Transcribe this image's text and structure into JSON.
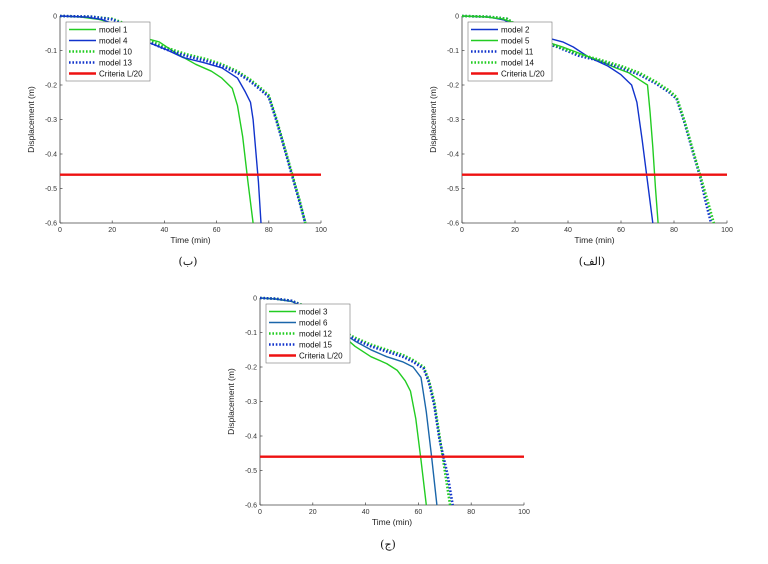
{
  "chart_data": [
    {
      "type": "line",
      "caption": "(ب)",
      "xlabel": "Time (min)",
      "ylabel": "Displacement (m)",
      "xlim": [
        0,
        100
      ],
      "ylim": [
        -0.6,
        0
      ],
      "xticks": [
        0,
        20,
        40,
        60,
        80,
        100
      ],
      "yticks": [
        0,
        -0.1,
        -0.2,
        -0.3,
        -0.4,
        -0.5,
        -0.6
      ],
      "ytick_labels": [
        "0",
        "-0.1",
        "-0.2",
        "-0.3",
        "-0.4",
        "-0.5",
        "-0.6"
      ],
      "legend_position": "top-left",
      "series": [
        {
          "name": "model 1",
          "color": "#22cc22",
          "style": "solid",
          "x": [
            0,
            8,
            15,
            22,
            27,
            33,
            38,
            45,
            52,
            58,
            62,
            66,
            68,
            70,
            72,
            74
          ],
          "y": [
            0,
            -0.003,
            -0.01,
            -0.025,
            -0.04,
            -0.065,
            -0.075,
            -0.11,
            -0.14,
            -0.16,
            -0.18,
            -0.21,
            -0.26,
            -0.35,
            -0.48,
            -0.6
          ]
        },
        {
          "name": "model 4",
          "color": "#1133cc",
          "style": "solid",
          "x": [
            0,
            10,
            16,
            21,
            26,
            30,
            35,
            40,
            47,
            55,
            62,
            68,
            71,
            73,
            74,
            76,
            77
          ],
          "y": [
            0,
            -0.003,
            -0.01,
            -0.025,
            -0.045,
            -0.065,
            -0.08,
            -0.095,
            -0.12,
            -0.135,
            -0.15,
            -0.18,
            -0.22,
            -0.25,
            -0.3,
            -0.48,
            -0.6
          ]
        },
        {
          "name": "model 10",
          "color": "#22cc22",
          "style": "dotted",
          "x": [
            0,
            12,
            20,
            26,
            30,
            34,
            40,
            48,
            56,
            62,
            68,
            73,
            77,
            80,
            83,
            86,
            89,
            92,
            94
          ],
          "y": [
            0,
            -0.002,
            -0.008,
            -0.025,
            -0.045,
            -0.07,
            -0.09,
            -0.11,
            -0.125,
            -0.14,
            -0.16,
            -0.185,
            -0.21,
            -0.23,
            -0.3,
            -0.38,
            -0.46,
            -0.54,
            -0.6
          ]
        },
        {
          "name": "model 13",
          "color": "#1133cc",
          "style": "dotted",
          "x": [
            0,
            12,
            20,
            26,
            30,
            34,
            40,
            48,
            56,
            62,
            68,
            73,
            77,
            80,
            83,
            86,
            89,
            92,
            94
          ],
          "y": [
            0,
            -0.002,
            -0.01,
            -0.03,
            -0.05,
            -0.075,
            -0.095,
            -0.115,
            -0.13,
            -0.145,
            -0.165,
            -0.19,
            -0.215,
            -0.235,
            -0.305,
            -0.385,
            -0.465,
            -0.545,
            -0.6
          ]
        },
        {
          "name": "Criteria L/20",
          "color": "#ee1111",
          "style": "thick",
          "x": [
            0,
            100
          ],
          "y": [
            -0.46,
            -0.46
          ]
        }
      ]
    },
    {
      "type": "line",
      "caption": "(الف)",
      "xlabel": "Time (min)",
      "ylabel": "Displacement (m)",
      "xlim": [
        0,
        100
      ],
      "ylim": [
        -0.6,
        0
      ],
      "xticks": [
        0,
        20,
        40,
        60,
        80,
        100
      ],
      "yticks": [
        0,
        -0.1,
        -0.2,
        -0.3,
        -0.4,
        -0.5,
        -0.6
      ],
      "ytick_labels": [
        "0",
        "-0.1",
        "-0.2",
        "-0.3",
        "-0.4",
        "-0.5",
        "-0.6"
      ],
      "legend_position": "top-left",
      "series": [
        {
          "name": "model 2",
          "color": "#1133cc",
          "style": "solid",
          "x": [
            0,
            10,
            16,
            20,
            24,
            28,
            33,
            38,
            42,
            48,
            55,
            60,
            64,
            66,
            68,
            70,
            72
          ],
          "y": [
            0,
            -0.003,
            -0.012,
            -0.03,
            -0.05,
            -0.06,
            -0.065,
            -0.075,
            -0.09,
            -0.12,
            -0.145,
            -0.17,
            -0.2,
            -0.25,
            -0.36,
            -0.48,
            -0.6
          ]
        },
        {
          "name": "model 5",
          "color": "#22cc22",
          "style": "solid",
          "x": [
            0,
            8,
            15,
            20,
            26,
            32,
            38,
            45,
            52,
            58,
            63,
            67,
            70,
            71,
            72,
            73,
            74
          ],
          "y": [
            0,
            -0.002,
            -0.008,
            -0.02,
            -0.05,
            -0.075,
            -0.09,
            -0.11,
            -0.13,
            -0.15,
            -0.165,
            -0.185,
            -0.2,
            -0.28,
            -0.38,
            -0.5,
            -0.6
          ]
        },
        {
          "name": "model 11",
          "color": "#1133cc",
          "style": "dotted",
          "x": [
            0,
            10,
            17,
            21,
            25,
            30,
            36,
            44,
            52,
            60,
            67,
            73,
            78,
            81,
            84,
            87,
            90,
            92,
            94
          ],
          "y": [
            0,
            -0.002,
            -0.008,
            -0.03,
            -0.055,
            -0.075,
            -0.09,
            -0.115,
            -0.13,
            -0.15,
            -0.17,
            -0.195,
            -0.22,
            -0.24,
            -0.31,
            -0.39,
            -0.47,
            -0.54,
            -0.6
          ]
        },
        {
          "name": "model 14",
          "color": "#22cc22",
          "style": "dotted",
          "x": [
            0,
            10,
            17,
            21,
            25,
            30,
            36,
            44,
            52,
            60,
            67,
            73,
            78,
            81,
            84,
            87,
            90,
            93,
            95
          ],
          "y": [
            0,
            -0.002,
            -0.008,
            -0.028,
            -0.05,
            -0.07,
            -0.088,
            -0.11,
            -0.127,
            -0.145,
            -0.165,
            -0.19,
            -0.215,
            -0.235,
            -0.305,
            -0.385,
            -0.465,
            -0.545,
            -0.6
          ]
        },
        {
          "name": "Criteria L/20",
          "color": "#ee1111",
          "style": "thick",
          "x": [
            0,
            100
          ],
          "y": [
            -0.46,
            -0.46
          ]
        }
      ]
    },
    {
      "type": "line",
      "caption": "(ج)",
      "xlabel": "Time (min)",
      "ylabel": "Displacement (m)",
      "xlim": [
        0,
        100
      ],
      "ylim": [
        -0.6,
        0
      ],
      "xticks": [
        0,
        20,
        40,
        60,
        80,
        100
      ],
      "yticks": [
        0,
        -0.1,
        -0.2,
        -0.3,
        -0.4,
        -0.5,
        -0.6
      ],
      "ytick_labels": [
        "0",
        "-0.1",
        "-0.2",
        "-0.3",
        "-0.4",
        "-0.5",
        "-0.6"
      ],
      "legend_position": "top-left",
      "series": [
        {
          "name": "model 3",
          "color": "#22cc22",
          "style": "solid",
          "x": [
            0,
            6,
            12,
            16,
            20,
            25,
            30,
            36,
            42,
            48,
            52,
            55,
            57,
            59,
            61,
            63
          ],
          "y": [
            0,
            -0.003,
            -0.01,
            -0.025,
            -0.045,
            -0.07,
            -0.1,
            -0.14,
            -0.17,
            -0.19,
            -0.21,
            -0.24,
            -0.27,
            -0.35,
            -0.47,
            -0.6
          ]
        },
        {
          "name": "model 6",
          "color": "#1a66aa",
          "style": "solid",
          "x": [
            0,
            6,
            12,
            16,
            20,
            25,
            30,
            36,
            42,
            48,
            54,
            58,
            61,
            63,
            65,
            67
          ],
          "y": [
            0,
            -0.003,
            -0.01,
            -0.025,
            -0.045,
            -0.07,
            -0.095,
            -0.125,
            -0.15,
            -0.17,
            -0.185,
            -0.2,
            -0.23,
            -0.33,
            -0.46,
            -0.6
          ]
        },
        {
          "name": "model 12",
          "color": "#22cc22",
          "style": "dotted",
          "x": [
            0,
            6,
            12,
            16,
            20,
            25,
            30,
            36,
            42,
            48,
            54,
            58,
            62,
            64,
            66,
            68,
            70,
            72
          ],
          "y": [
            0,
            -0.002,
            -0.008,
            -0.02,
            -0.04,
            -0.065,
            -0.09,
            -0.115,
            -0.135,
            -0.15,
            -0.165,
            -0.18,
            -0.2,
            -0.24,
            -0.3,
            -0.4,
            -0.5,
            -0.6
          ]
        },
        {
          "name": "model 15",
          "color": "#1133cc",
          "style": "dotted",
          "x": [
            0,
            6,
            12,
            16,
            20,
            25,
            30,
            36,
            42,
            48,
            54,
            58,
            62,
            64,
            66,
            68,
            71,
            73
          ],
          "y": [
            0,
            -0.002,
            -0.008,
            -0.022,
            -0.042,
            -0.068,
            -0.093,
            -0.12,
            -0.14,
            -0.155,
            -0.17,
            -0.185,
            -0.205,
            -0.245,
            -0.31,
            -0.41,
            -0.51,
            -0.6
          ]
        },
        {
          "name": "Criteria L/20",
          "color": "#ee1111",
          "style": "thick",
          "x": [
            0,
            100
          ],
          "y": [
            -0.46,
            -0.46
          ]
        }
      ]
    }
  ]
}
